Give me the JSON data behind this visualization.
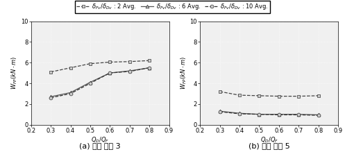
{
  "x": [
    0.3,
    0.4,
    0.5,
    0.6,
    0.7,
    0.8
  ],
  "panel_a": {
    "series_2": [
      5.1,
      5.5,
      5.9,
      6.05,
      6.1,
      6.2
    ],
    "series_6": [
      2.7,
      3.1,
      4.1,
      5.0,
      5.2,
      5.5
    ],
    "series_10": [
      2.6,
      3.0,
      4.0,
      5.0,
      5.15,
      5.5
    ]
  },
  "panel_b": {
    "series_2": [
      3.2,
      2.85,
      2.8,
      2.75,
      2.75,
      2.8
    ],
    "series_6": [
      1.3,
      1.1,
      1.0,
      1.0,
      1.0,
      0.95
    ],
    "series_10": [
      1.25,
      1.05,
      1.0,
      0.95,
      0.95,
      0.9
    ]
  },
  "xlim": [
    0.2,
    0.9
  ],
  "ylim": [
    0,
    10
  ],
  "yticks": [
    0,
    2,
    4,
    6,
    8,
    10
  ],
  "xticks": [
    0.2,
    0.3,
    0.4,
    0.5,
    0.6,
    0.7,
    0.8,
    0.9
  ],
  "xlabel": "$Q_D/Q_F$",
  "ylabel": "$W_{FP}(kN\\cdot m)$",
  "label_a": "(a) 주기 비율 3",
  "label_b": "(b) 주기 비율 5",
  "legend_labels": [
    "$\\delta_{Fv}/\\delta_{Dv}$ : 2 Avg.",
    "$\\delta_{Fv}/\\delta_{Dv}$ : 6 Avg.",
    "$\\delta_{Fv}/\\delta_{Dv}$ : 10 Avg."
  ],
  "colors": [
    "#444444",
    "#555555",
    "#333333"
  ],
  "linestyles": [
    "--",
    "-",
    "--"
  ],
  "markers": [
    "s",
    "^",
    "o"
  ],
  "markerfacecolors": [
    "#cccccc",
    "#bbbbbb",
    "#cccccc"
  ],
  "markersize": 3.5,
  "linewidth": 0.9,
  "bg_color": "#f0f0f0",
  "grid_color": "white",
  "fontsize_label": 6,
  "fontsize_tick": 6,
  "fontsize_legend": 6,
  "fontsize_sublabel": 8
}
